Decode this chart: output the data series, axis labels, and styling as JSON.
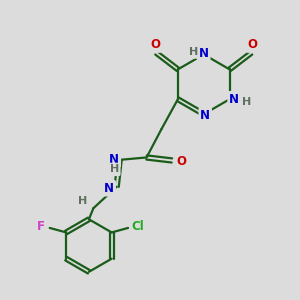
{
  "background_color": "#dcdcdc",
  "bond_color": "#1a5c1a",
  "colors": {
    "O": "#cc0000",
    "N": "#0000cc",
    "H": "#607060",
    "Cl": "#22aa22",
    "F": "#cc44cc"
  },
  "figsize": [
    3.0,
    3.0
  ],
  "dpi": 100
}
